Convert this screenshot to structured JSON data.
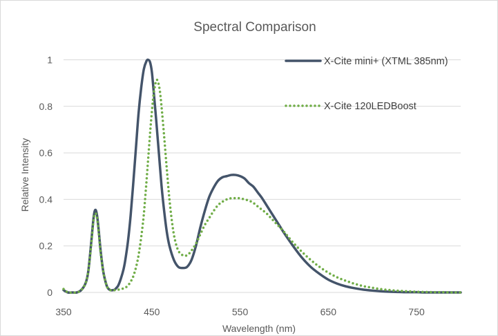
{
  "chart_data": {
    "type": "line",
    "title": "Spectral Comparison",
    "xlabel": "Wavelength (nm)",
    "ylabel": "Relative Intensity",
    "xlim": [
      350,
      800
    ],
    "ylim": [
      0,
      1.1
    ],
    "xticks": [
      350,
      450,
      550,
      650,
      750
    ],
    "yticks": [
      0,
      0.2,
      0.4,
      0.6,
      0.8,
      1
    ],
    "ytick_labels": [
      "0",
      "0.2",
      "0.4",
      "0.6",
      "0.8",
      "1"
    ],
    "grid": "horizontal",
    "legend_position": "top-right",
    "series": [
      {
        "name": "X-Cite mini+ (XTML 385nm)",
        "color": "#44546a",
        "style": "solid",
        "x": [
          350,
          355,
          360,
          365,
          370,
          375,
          378,
          381,
          384,
          386,
          388,
          390,
          392,
          395,
          398,
          400,
          403,
          406,
          408,
          410,
          412,
          415,
          418,
          420,
          423,
          426,
          429,
          432,
          435,
          438,
          441,
          444,
          446,
          448,
          450,
          452,
          455,
          458,
          461,
          464,
          467,
          470,
          475,
          480,
          485,
          490,
          495,
          500,
          505,
          510,
          515,
          520,
          525,
          530,
          535,
          540,
          545,
          550,
          555,
          560,
          565,
          570,
          575,
          580,
          585,
          590,
          595,
          600,
          610,
          620,
          630,
          640,
          650,
          660,
          670,
          680,
          690,
          700,
          710,
          720,
          730,
          740,
          750,
          760,
          770,
          780,
          790,
          800
        ],
        "values": [
          0.01,
          0.0,
          0.0,
          0.0,
          0.01,
          0.04,
          0.09,
          0.2,
          0.32,
          0.355,
          0.33,
          0.26,
          0.18,
          0.09,
          0.04,
          0.02,
          0.01,
          0.01,
          0.012,
          0.02,
          0.03,
          0.06,
          0.1,
          0.14,
          0.22,
          0.33,
          0.47,
          0.62,
          0.77,
          0.88,
          0.96,
          0.995,
          1.0,
          0.99,
          0.95,
          0.87,
          0.74,
          0.6,
          0.46,
          0.35,
          0.26,
          0.2,
          0.14,
          0.11,
          0.105,
          0.11,
          0.14,
          0.2,
          0.28,
          0.35,
          0.41,
          0.45,
          0.48,
          0.495,
          0.5,
          0.505,
          0.505,
          0.5,
          0.49,
          0.47,
          0.455,
          0.43,
          0.405,
          0.375,
          0.345,
          0.315,
          0.285,
          0.255,
          0.2,
          0.15,
          0.11,
          0.08,
          0.055,
          0.038,
          0.026,
          0.018,
          0.012,
          0.008,
          0.005,
          0.003,
          0.002,
          0.001,
          0.001,
          0.0,
          0.0,
          0.0,
          0.0,
          0.0
        ]
      },
      {
        "name": "X-Cite 120LEDBoost",
        "color": "#70ad47",
        "style": "dotted",
        "x": [
          350,
          355,
          360,
          365,
          370,
          375,
          378,
          381,
          384,
          386,
          388,
          390,
          392,
          395,
          398,
          400,
          403,
          406,
          410,
          415,
          420,
          425,
          430,
          435,
          440,
          443,
          446,
          449,
          452,
          455,
          457,
          459,
          461,
          464,
          467,
          470,
          473,
          476,
          480,
          485,
          490,
          495,
          500,
          505,
          510,
          515,
          520,
          525,
          530,
          535,
          540,
          545,
          550,
          555,
          560,
          565,
          570,
          575,
          580,
          585,
          590,
          595,
          600,
          610,
          620,
          630,
          640,
          650,
          660,
          670,
          680,
          690,
          700,
          710,
          720,
          730,
          740,
          750,
          760,
          770,
          780,
          790,
          800
        ],
        "values": [
          0.015,
          0.0,
          0.0,
          0.0,
          0.01,
          0.04,
          0.09,
          0.19,
          0.31,
          0.34,
          0.32,
          0.25,
          0.17,
          0.09,
          0.04,
          0.02,
          0.01,
          0.01,
          0.01,
          0.015,
          0.02,
          0.04,
          0.08,
          0.16,
          0.3,
          0.43,
          0.58,
          0.73,
          0.85,
          0.91,
          0.905,
          0.87,
          0.8,
          0.67,
          0.53,
          0.4,
          0.3,
          0.23,
          0.18,
          0.16,
          0.16,
          0.18,
          0.21,
          0.25,
          0.29,
          0.32,
          0.35,
          0.375,
          0.39,
          0.4,
          0.405,
          0.405,
          0.405,
          0.4,
          0.395,
          0.385,
          0.37,
          0.355,
          0.34,
          0.32,
          0.3,
          0.28,
          0.26,
          0.215,
          0.175,
          0.14,
          0.11,
          0.085,
          0.065,
          0.05,
          0.037,
          0.027,
          0.02,
          0.014,
          0.01,
          0.007,
          0.005,
          0.003,
          0.002,
          0.001,
          0.001,
          0.0,
          0.0
        ]
      }
    ]
  }
}
